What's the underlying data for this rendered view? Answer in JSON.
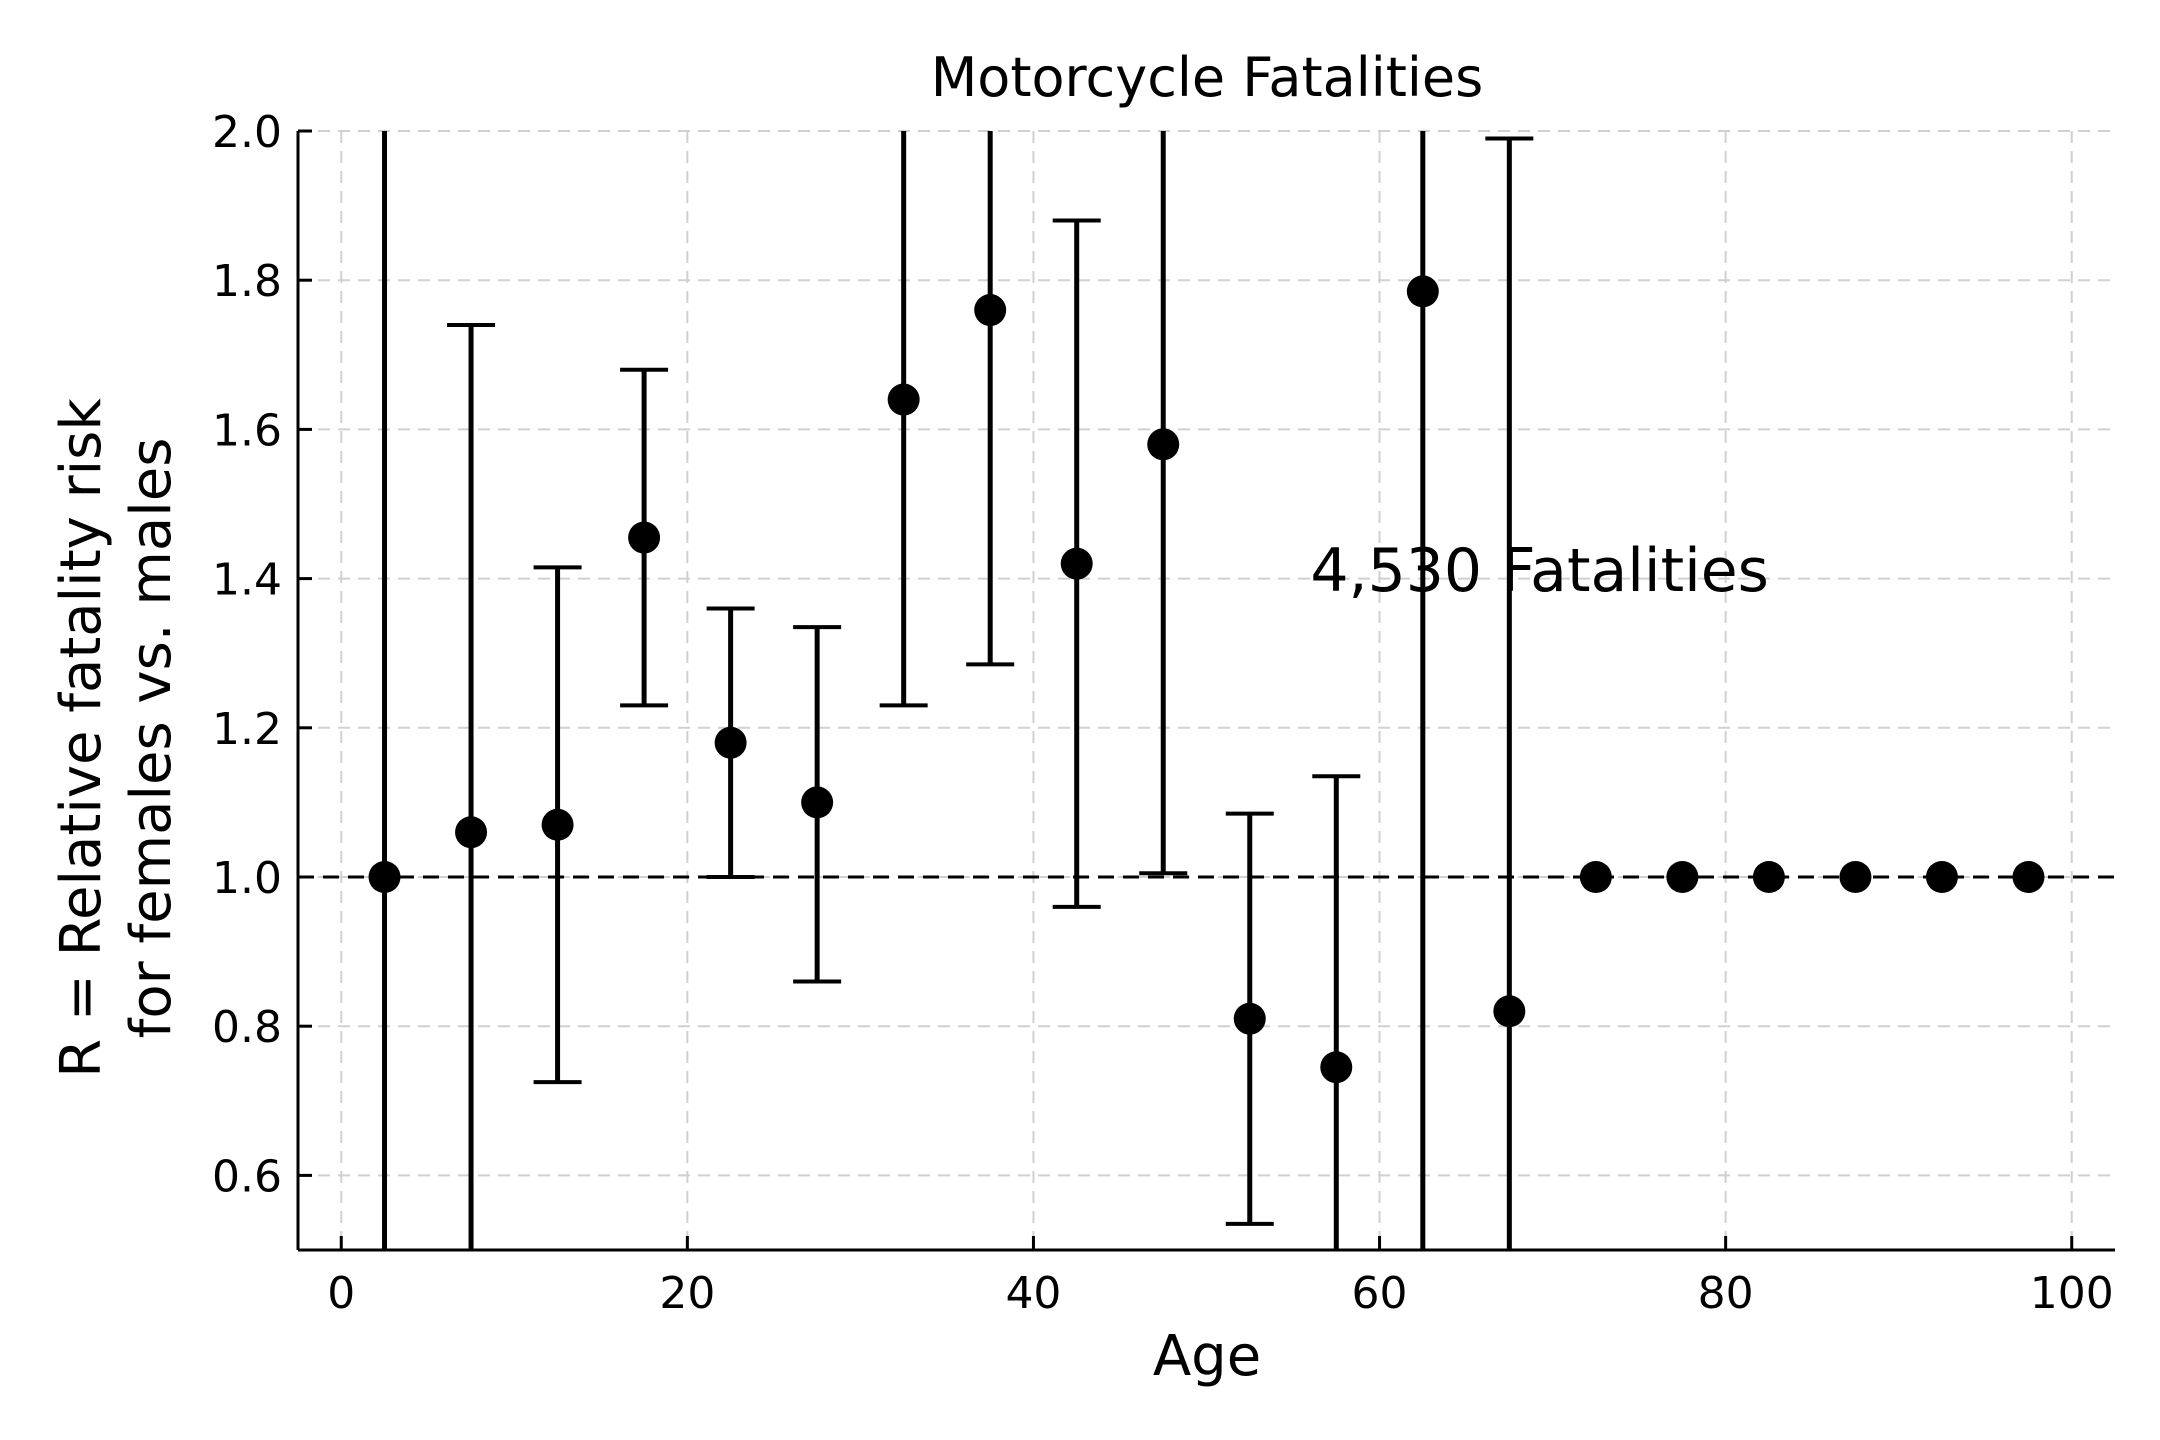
{
  "chart_data": {
    "type": "scatter",
    "title": "Motorcycle Fatalities",
    "xlabel": "Age",
    "ylabel": [
      "R = Relative fatality risk",
      "for females vs. males"
    ],
    "xlim": [
      -2.5,
      102.5
    ],
    "ylim": [
      0.5,
      2.0
    ],
    "xticks": [
      0,
      20,
      40,
      60,
      80,
      100
    ],
    "yticks": [
      0.6,
      0.8,
      1.0,
      1.2,
      1.4,
      1.6,
      1.8,
      2.0
    ],
    "ytick_labels": [
      "0.6",
      "0.8",
      "1.0",
      "1.2",
      "1.4",
      "1.6",
      "1.8",
      "2.0"
    ],
    "grid": true,
    "reference_line": {
      "y": 1.0,
      "style": "dashed"
    },
    "annotation": {
      "text": "4,530 Fatalities",
      "x": 56,
      "y": 1.41
    },
    "series": [
      {
        "points": [
          {
            "x": 2.5,
            "y": 1.0,
            "lo": null,
            "hi": null
          },
          {
            "x": 7.5,
            "y": 1.06,
            "lo": null,
            "hi": 1.74
          },
          {
            "x": 12.5,
            "y": 1.07,
            "lo": 0.725,
            "hi": 1.415
          },
          {
            "x": 17.5,
            "y": 1.455,
            "lo": 1.23,
            "hi": 1.68
          },
          {
            "x": 22.5,
            "y": 1.18,
            "lo": 1.0,
            "hi": 1.36
          },
          {
            "x": 27.5,
            "y": 1.1,
            "lo": 0.86,
            "hi": 1.335
          },
          {
            "x": 32.5,
            "y": 1.64,
            "lo": 1.23,
            "hi": null
          },
          {
            "x": 37.5,
            "y": 1.76,
            "lo": 1.285,
            "hi": null
          },
          {
            "x": 42.5,
            "y": 1.42,
            "lo": 0.96,
            "hi": 1.88
          },
          {
            "x": 47.5,
            "y": 1.58,
            "lo": 1.005,
            "hi": null
          },
          {
            "x": 52.5,
            "y": 0.81,
            "lo": 0.535,
            "hi": 1.085
          },
          {
            "x": 57.5,
            "y": 0.745,
            "lo": null,
            "hi": 1.135
          },
          {
            "x": 62.5,
            "y": 1.785,
            "lo": null,
            "hi": null
          },
          {
            "x": 67.5,
            "y": 0.82,
            "lo": null,
            "hi": 1.99
          },
          {
            "x": 72.5,
            "y": 1.0
          },
          {
            "x": 77.5,
            "y": 1.0
          },
          {
            "x": 82.5,
            "y": 1.0
          },
          {
            "x": 87.5,
            "y": 1.0
          },
          {
            "x": 92.5,
            "y": 1.0
          },
          {
            "x": 97.5,
            "y": 1.0
          }
        ]
      }
    ]
  }
}
